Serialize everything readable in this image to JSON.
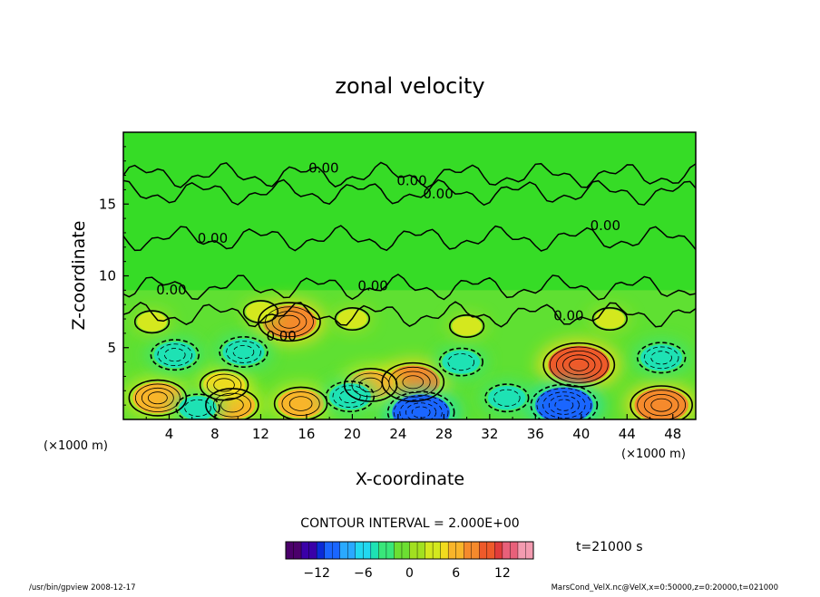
{
  "chart_data": {
    "type": "heatmap",
    "title": "zonal velocity",
    "xlabel": "X-coordinate",
    "ylabel": "Z-coordinate",
    "x_unit": "(×1000 m)",
    "y_unit": "(×1000 m)",
    "xlim": [
      0,
      50
    ],
    "ylim": [
      0,
      20
    ],
    "x_ticks": [
      "4",
      "8",
      "12",
      "16",
      "20",
      "24",
      "28",
      "32",
      "36",
      "40",
      "44",
      "48"
    ],
    "x_tick_values": [
      4,
      8,
      12,
      16,
      20,
      24,
      28,
      32,
      36,
      40,
      44,
      48
    ],
    "y_ticks": [
      "5",
      "10",
      "15"
    ],
    "y_tick_values": [
      5,
      10,
      15
    ],
    "contour_interval_label": "CONTOUR INTERVAL = 2.000E+00",
    "contour_labels": [
      {
        "text": "0.00",
        "x": 17.5,
        "z": 17.2
      },
      {
        "text": "0.00",
        "x": 25.2,
        "z": 16.3
      },
      {
        "text": "0.00",
        "x": 27.5,
        "z": 15.4
      },
      {
        "text": "0.00",
        "x": 42.1,
        "z": 13.2
      },
      {
        "text": "0.00",
        "x": 7.8,
        "z": 12.3
      },
      {
        "text": "0.00",
        "x": 4.2,
        "z": 8.7
      },
      {
        "text": "0.00",
        "x": 21.8,
        "z": 9.0
      },
      {
        "text": "0.00",
        "x": 38.9,
        "z": 6.9
      },
      {
        "text": "0.00",
        "x": 13.8,
        "z": 5.5
      }
    ],
    "features": [
      {
        "x": 14.5,
        "z": 6.8,
        "value": 8
      },
      {
        "x": 39.8,
        "z": 3.8,
        "value": 10
      },
      {
        "x": 25.3,
        "z": 2.6,
        "value": 8
      },
      {
        "x": 21.6,
        "z": 2.4,
        "value": 6
      },
      {
        "x": 3.0,
        "z": 1.5,
        "value": 7
      },
      {
        "x": 9.5,
        "z": 1.0,
        "value": 6
      },
      {
        "x": 15.5,
        "z": 1.1,
        "value": 6
      },
      {
        "x": 47.0,
        "z": 1.0,
        "value": 8
      },
      {
        "x": 8.8,
        "z": 2.4,
        "value": 5
      },
      {
        "x": 4.5,
        "z": 4.5,
        "value": -5
      },
      {
        "x": 10.5,
        "z": 4.7,
        "value": -5
      },
      {
        "x": 29.5,
        "z": 4.0,
        "value": -4
      },
      {
        "x": 47.0,
        "z": 4.3,
        "value": -5
      },
      {
        "x": 26.0,
        "z": 0.5,
        "value": -9
      },
      {
        "x": 38.5,
        "z": 1.0,
        "value": -9
      },
      {
        "x": 19.8,
        "z": 1.6,
        "value": -5
      },
      {
        "x": 6.5,
        "z": 0.8,
        "value": -4
      },
      {
        "x": 33.5,
        "z": 1.5,
        "value": -4
      },
      {
        "x": 2.5,
        "z": 6.8,
        "value": 2
      },
      {
        "x": 12.0,
        "z": 7.5,
        "value": 2
      },
      {
        "x": 20.0,
        "z": 7.0,
        "value": 2
      },
      {
        "x": 30.0,
        "z": 6.5,
        "value": 2
      },
      {
        "x": 42.5,
        "z": 7.0,
        "value": 2
      }
    ],
    "colorbar": {
      "ticks": [
        "−12",
        "−6",
        "0",
        "6",
        "12"
      ],
      "tick_values": [
        -12,
        -6,
        0,
        6,
        12
      ],
      "range": [
        -16,
        16
      ],
      "colors": [
        "#4b006b",
        "#3a00a8",
        "#0a2bd6",
        "#1a66ff",
        "#2aa9ff",
        "#22d8f0",
        "#1ee2b4",
        "#39e67a",
        "#6cdf32",
        "#a2e020",
        "#d4e81e",
        "#f2dc1e",
        "#f8b52a",
        "#f58a2c",
        "#ee5a2a",
        "#e03b3b",
        "#e8607a",
        "#f39bb0"
      ]
    }
  },
  "time_label": "t=21000 s",
  "footer_left": "/usr/bin/gpview   2008-12-17",
  "footer_right": "MarsCond_VelX.nc@VelX,x=0:50000,z=0:20000,t=021000"
}
